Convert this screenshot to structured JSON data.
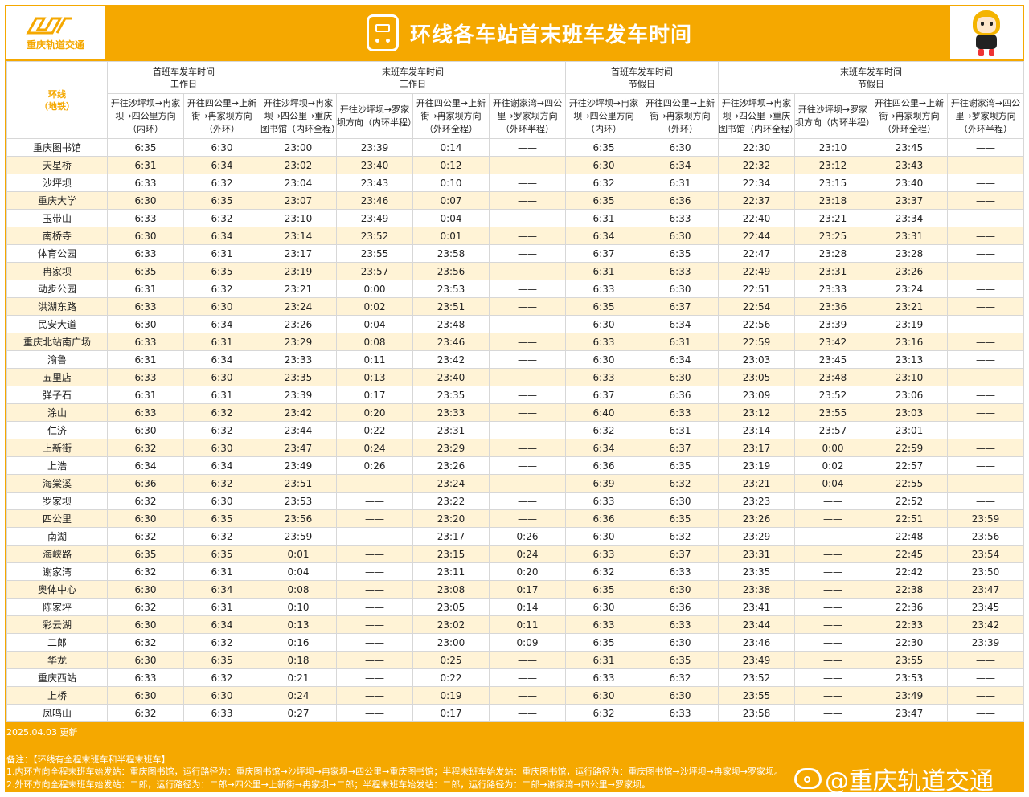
{
  "header": {
    "logo_text": "重庆轨道交通",
    "title": "环线各车站首末班车发车时间"
  },
  "table": {
    "corner_line1": "环线",
    "corner_line2": "（地铁）",
    "groups": [
      {
        "line1": "首班车发车时间",
        "line2": "工作日"
      },
      {
        "line1": "末班车发车时间",
        "line2": "工作日"
      },
      {
        "line1": "首班车发车时间",
        "line2": "节假日"
      },
      {
        "line1": "末班车发车时间",
        "line2": "节假日"
      }
    ],
    "subheaders": [
      "开往沙坪坝→冉家坝→四公里方向（内环）",
      "开往四公里→上新街→冉家坝方向（外环）",
      "开往沙坪坝→冉家坝→四公里→重庆图书馆（内环全程）",
      "开往沙坪坝→罗家坝方向（内环半程）",
      "开往四公里→上新街→冉家坝方向（外环全程）",
      "开往谢家湾→四公里→罗家坝方向（外环半程）",
      "开往沙坪坝→冉家坝→四公里方向（内环）",
      "开往四公里→上新街→冉家坝方向（外环）",
      "开往沙坪坝→冉家坝→四公里→重庆图书馆（内环全程）",
      "开往沙坪坝→罗家坝方向（内环半程）",
      "开往四公里→上新街→冉家坝方向（外环全程）",
      "开往谢家湾→四公里→罗家坝方向（外环半程）"
    ],
    "rows": [
      [
        "重庆图书馆",
        "6:35",
        "6:30",
        "23:00",
        "23:39",
        "0:14",
        "——",
        "6:35",
        "6:30",
        "22:30",
        "23:10",
        "23:45",
        "——"
      ],
      [
        "天星桥",
        "6:31",
        "6:34",
        "23:02",
        "23:40",
        "0:12",
        "——",
        "6:30",
        "6:34",
        "22:32",
        "23:12",
        "23:43",
        "——"
      ],
      [
        "沙坪坝",
        "6:33",
        "6:32",
        "23:04",
        "23:43",
        "0:10",
        "——",
        "6:32",
        "6:31",
        "22:34",
        "23:15",
        "23:40",
        "——"
      ],
      [
        "重庆大学",
        "6:30",
        "6:35",
        "23:07",
        "23:46",
        "0:07",
        "——",
        "6:35",
        "6:36",
        "22:37",
        "23:18",
        "23:37",
        "——"
      ],
      [
        "玉带山",
        "6:33",
        "6:32",
        "23:10",
        "23:49",
        "0:04",
        "——",
        "6:31",
        "6:33",
        "22:40",
        "23:21",
        "23:34",
        "——"
      ],
      [
        "南桥寺",
        "6:30",
        "6:34",
        "23:14",
        "23:52",
        "0:01",
        "——",
        "6:34",
        "6:30",
        "22:44",
        "23:25",
        "23:31",
        "——"
      ],
      [
        "体育公园",
        "6:33",
        "6:31",
        "23:17",
        "23:55",
        "23:58",
        "——",
        "6:37",
        "6:35",
        "22:47",
        "23:28",
        "23:28",
        "——"
      ],
      [
        "冉家坝",
        "6:35",
        "6:35",
        "23:19",
        "23:57",
        "23:56",
        "——",
        "6:31",
        "6:33",
        "22:49",
        "23:31",
        "23:26",
        "——"
      ],
      [
        "动步公园",
        "6:31",
        "6:32",
        "23:21",
        "0:00",
        "23:53",
        "——",
        "6:33",
        "6:30",
        "22:51",
        "23:33",
        "23:24",
        "——"
      ],
      [
        "洪湖东路",
        "6:33",
        "6:30",
        "23:24",
        "0:02",
        "23:51",
        "——",
        "6:35",
        "6:37",
        "22:54",
        "23:36",
        "23:21",
        "——"
      ],
      [
        "民安大道",
        "6:30",
        "6:34",
        "23:26",
        "0:04",
        "23:48",
        "——",
        "6:30",
        "6:34",
        "22:56",
        "23:39",
        "23:19",
        "——"
      ],
      [
        "重庆北站南广场",
        "6:33",
        "6:31",
        "23:29",
        "0:08",
        "23:46",
        "——",
        "6:33",
        "6:31",
        "22:59",
        "23:42",
        "23:16",
        "——"
      ],
      [
        "渝鲁",
        "6:31",
        "6:34",
        "23:33",
        "0:11",
        "23:42",
        "——",
        "6:30",
        "6:34",
        "23:03",
        "23:45",
        "23:13",
        "——"
      ],
      [
        "五里店",
        "6:33",
        "6:30",
        "23:35",
        "0:13",
        "23:40",
        "——",
        "6:33",
        "6:30",
        "23:05",
        "23:48",
        "23:10",
        "——"
      ],
      [
        "弹子石",
        "6:31",
        "6:31",
        "23:39",
        "0:17",
        "23:35",
        "——",
        "6:37",
        "6:36",
        "23:09",
        "23:52",
        "23:06",
        "——"
      ],
      [
        "涂山",
        "6:33",
        "6:32",
        "23:42",
        "0:20",
        "23:33",
        "——",
        "6:40",
        "6:33",
        "23:12",
        "23:55",
        "23:03",
        "——"
      ],
      [
        "仁济",
        "6:30",
        "6:32",
        "23:44",
        "0:22",
        "23:31",
        "——",
        "6:32",
        "6:31",
        "23:14",
        "23:57",
        "23:01",
        "——"
      ],
      [
        "上新街",
        "6:32",
        "6:30",
        "23:47",
        "0:24",
        "23:29",
        "——",
        "6:34",
        "6:37",
        "23:17",
        "0:00",
        "22:59",
        "——"
      ],
      [
        "上浩",
        "6:34",
        "6:34",
        "23:49",
        "0:26",
        "23:26",
        "——",
        "6:36",
        "6:35",
        "23:19",
        "0:02",
        "22:57",
        "——"
      ],
      [
        "海棠溪",
        "6:36",
        "6:32",
        "23:51",
        "——",
        "23:24",
        "——",
        "6:39",
        "6:32",
        "23:21",
        "0:04",
        "22:55",
        "——"
      ],
      [
        "罗家坝",
        "6:32",
        "6:30",
        "23:53",
        "——",
        "23:22",
        "——",
        "6:33",
        "6:30",
        "23:23",
        "——",
        "22:52",
        "——"
      ],
      [
        "四公里",
        "6:30",
        "6:35",
        "23:56",
        "——",
        "23:20",
        "——",
        "6:36",
        "6:35",
        "23:26",
        "——",
        "22:51",
        "23:59"
      ],
      [
        "南湖",
        "6:32",
        "6:32",
        "23:59",
        "——",
        "23:17",
        "0:26",
        "6:30",
        "6:32",
        "23:29",
        "——",
        "22:48",
        "23:56"
      ],
      [
        "海峡路",
        "6:35",
        "6:35",
        "0:01",
        "——",
        "23:15",
        "0:24",
        "6:33",
        "6:37",
        "23:31",
        "——",
        "22:45",
        "23:54"
      ],
      [
        "谢家湾",
        "6:32",
        "6:31",
        "0:04",
        "——",
        "23:11",
        "0:20",
        "6:32",
        "6:33",
        "23:35",
        "——",
        "22:42",
        "23:50"
      ],
      [
        "奥体中心",
        "6:30",
        "6:34",
        "0:08",
        "——",
        "23:08",
        "0:17",
        "6:35",
        "6:30",
        "23:38",
        "——",
        "22:38",
        "23:47"
      ],
      [
        "陈家坪",
        "6:32",
        "6:31",
        "0:10",
        "——",
        "23:05",
        "0:14",
        "6:30",
        "6:36",
        "23:41",
        "——",
        "22:36",
        "23:45"
      ],
      [
        "彩云湖",
        "6:30",
        "6:34",
        "0:13",
        "——",
        "23:02",
        "0:11",
        "6:33",
        "6:33",
        "23:44",
        "——",
        "22:33",
        "23:42"
      ],
      [
        "二郎",
        "6:32",
        "6:32",
        "0:16",
        "——",
        "23:00",
        "0:09",
        "6:35",
        "6:30",
        "23:46",
        "——",
        "22:30",
        "23:39"
      ],
      [
        "华龙",
        "6:30",
        "6:35",
        "0:18",
        "——",
        "0:25",
        "——",
        "6:31",
        "6:35",
        "23:49",
        "——",
        "23:55",
        "——"
      ],
      [
        "重庆西站",
        "6:33",
        "6:32",
        "0:21",
        "——",
        "0:22",
        "——",
        "6:33",
        "6:32",
        "23:52",
        "——",
        "23:53",
        "——"
      ],
      [
        "上桥",
        "6:30",
        "6:30",
        "0:24",
        "——",
        "0:19",
        "——",
        "6:30",
        "6:30",
        "23:55",
        "——",
        "23:49",
        "——"
      ],
      [
        "凤鸣山",
        "6:32",
        "6:33",
        "0:27",
        "——",
        "0:17",
        "——",
        "6:32",
        "6:33",
        "23:58",
        "——",
        "23:47",
        "——"
      ]
    ]
  },
  "footer": {
    "updated": "2025.04.03 更新",
    "note_title": "备注：【环线有全程末班车和半程末班车】",
    "note_1": "1.内环方向全程末班车始发站：重庆图书馆，运行路径为：重庆图书馆→沙坪坝→冉家坝→四公里→重庆图书馆；半程末班车始发站：重庆图书馆，运行路径为：重庆图书馆→沙坪坝→冉家坝→罗家坝。",
    "note_2": "2.外环方向全程末班车始发站：二郎，运行路径为：二郎→四公里→上新街→冉家坝→二郎；半程末班车始发站：二郎，运行路径为：二郎→谢家湾→四公里→罗家坝。",
    "watermark": "@重庆轨道交通"
  },
  "colors": {
    "brand": "#f5a800",
    "stripe": "#fff3d6"
  },
  "icons": {
    "logo": "cqmetro-logo-icon",
    "title": "train-front-icon",
    "mascot": "mascot-icon",
    "weibo": "weibo-icon"
  }
}
